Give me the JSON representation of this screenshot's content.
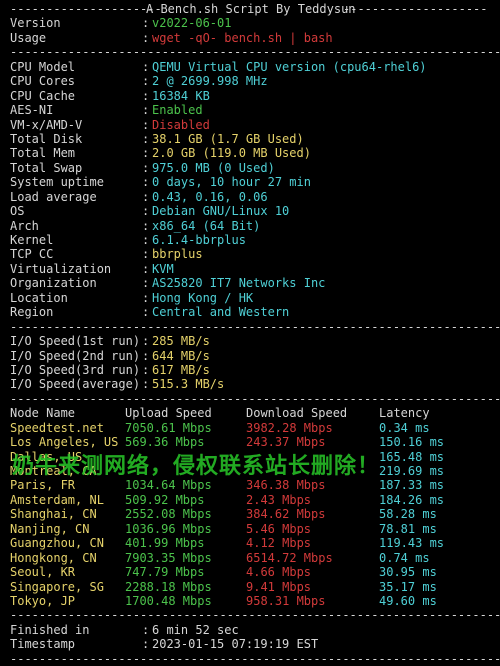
{
  "header": {
    "title": "A Bench.sh Script By Teddysun",
    "sep_left": "---------------------",
    "sep_right": "--------------------"
  },
  "info_top": [
    {
      "key": "Version",
      "value": "v2022-06-01",
      "color": "#4cc34c"
    },
    {
      "key": "Usage",
      "value": "wget -qO- bench.sh | bash",
      "color": "#d23a3a"
    }
  ],
  "separator": "----------------------------------------------------------------------",
  "system": [
    {
      "key": "CPU Model",
      "value": "QEMU Virtual CPU version (cpu64-rhel6)",
      "color": "#4fd0d6"
    },
    {
      "key": "CPU Cores",
      "value": "2 @ 2699.998 MHz",
      "color": "#4fd0d6"
    },
    {
      "key": "CPU Cache",
      "value": "16384 KB",
      "color": "#4fd0d6"
    },
    {
      "key": "AES-NI",
      "value": "Enabled",
      "color": "#4cc34c"
    },
    {
      "key": "VM-x/AMD-V",
      "value": "Disabled",
      "color": "#d23a3a"
    },
    {
      "key": "Total Disk",
      "value": "38.1 GB (1.7 GB Used)",
      "color": "#e5d26a"
    },
    {
      "key": "Total Mem",
      "value": "2.0 GB (119.0 MB Used)",
      "color": "#e5d26a"
    },
    {
      "key": "Total Swap",
      "value": "975.0 MB (0 Used)",
      "color": "#4fd0d6"
    },
    {
      "key": "System uptime",
      "value": "0 days, 10 hour 27 min",
      "color": "#4fd0d6"
    },
    {
      "key": "Load average",
      "value": "0.43, 0.16, 0.06",
      "color": "#4fd0d6"
    },
    {
      "key": "OS",
      "value": "Debian GNU/Linux 10",
      "color": "#4fd0d6"
    },
    {
      "key": "Arch",
      "value": "x86_64 (64 Bit)",
      "color": "#4fd0d6"
    },
    {
      "key": "Kernel",
      "value": "6.1.4-bbrplus",
      "color": "#4fd0d6"
    },
    {
      "key": "TCP CC",
      "value": "bbrplus",
      "color": "#e5d26a"
    },
    {
      "key": "Virtualization",
      "value": "KVM",
      "color": "#4fd0d6"
    },
    {
      "key": "Organization",
      "value": "AS25820 IT7 Networks Inc",
      "color": "#4fd0d6"
    },
    {
      "key": "Location",
      "value": "Hong Kong / HK",
      "color": "#4fd0d6"
    },
    {
      "key": "Region",
      "value": "Central and Western",
      "color": "#4fd0d6"
    }
  ],
  "io": [
    {
      "key": "I/O Speed(1st run)",
      "value": "285 MB/s"
    },
    {
      "key": "I/O Speed(2nd run)",
      "value": "644 MB/s"
    },
    {
      "key": "I/O Speed(3rd run)",
      "value": "617 MB/s"
    },
    {
      "key": "I/O Speed(average)",
      "value": "515.3 MB/s"
    }
  ],
  "speed_headers": {
    "node": "Node Name",
    "upload": "Upload Speed",
    "download": "Download Speed",
    "latency": "Latency"
  },
  "speed_rows": [
    {
      "node": "Speedtest.net",
      "upload": "7050.61 Mbps",
      "download": "3982.28 Mbps",
      "latency": "0.34 ms"
    },
    {
      "node": "Los Angeles, US",
      "upload": "569.36 Mbps",
      "download": "243.37 Mbps",
      "latency": "150.16 ms"
    },
    {
      "node": "Dallas, US",
      "upload": "",
      "download": "",
      "latency": "165.48 ms"
    },
    {
      "node": "Montreal, CA",
      "upload": "",
      "download": "",
      "latency": "219.69 ms"
    },
    {
      "node": "Paris, FR",
      "upload": "1034.64 Mbps",
      "download": "346.38 Mbps",
      "latency": "187.33 ms"
    },
    {
      "node": "Amsterdam, NL",
      "upload": "509.92 Mbps",
      "download": "2.43 Mbps",
      "latency": "184.26 ms"
    },
    {
      "node": "Shanghai, CN",
      "upload": "2552.08 Mbps",
      "download": "384.62 Mbps",
      "latency": "58.28 ms"
    },
    {
      "node": "Nanjing, CN",
      "upload": "1036.96 Mbps",
      "download": "5.46 Mbps",
      "latency": "78.81 ms"
    },
    {
      "node": "Guangzhou, CN",
      "upload": "401.99 Mbps",
      "download": "4.12 Mbps",
      "latency": "119.43 ms"
    },
    {
      "node": "Hongkong, CN",
      "upload": "7903.35 Mbps",
      "download": "6514.72 Mbps",
      "latency": "0.74 ms"
    },
    {
      "node": "Seoul, KR",
      "upload": "747.79 Mbps",
      "download": "4.66 Mbps",
      "latency": "30.95 ms"
    },
    {
      "node": "Singapore, SG",
      "upload": "2288.18 Mbps",
      "download": "9.41 Mbps",
      "latency": "35.17 ms"
    },
    {
      "node": "Tokyo, JP",
      "upload": "1700.48 Mbps",
      "download": "958.31 Mbps",
      "latency": "49.60 ms"
    }
  ],
  "footer": [
    {
      "key": "Finished in",
      "value": "6 min 52 sec"
    },
    {
      "key": "Timestamp",
      "value": "2023-01-15 07:19:19 EST"
    }
  ],
  "watermark": "奶牛来测网络，侵权联系站长删除！"
}
